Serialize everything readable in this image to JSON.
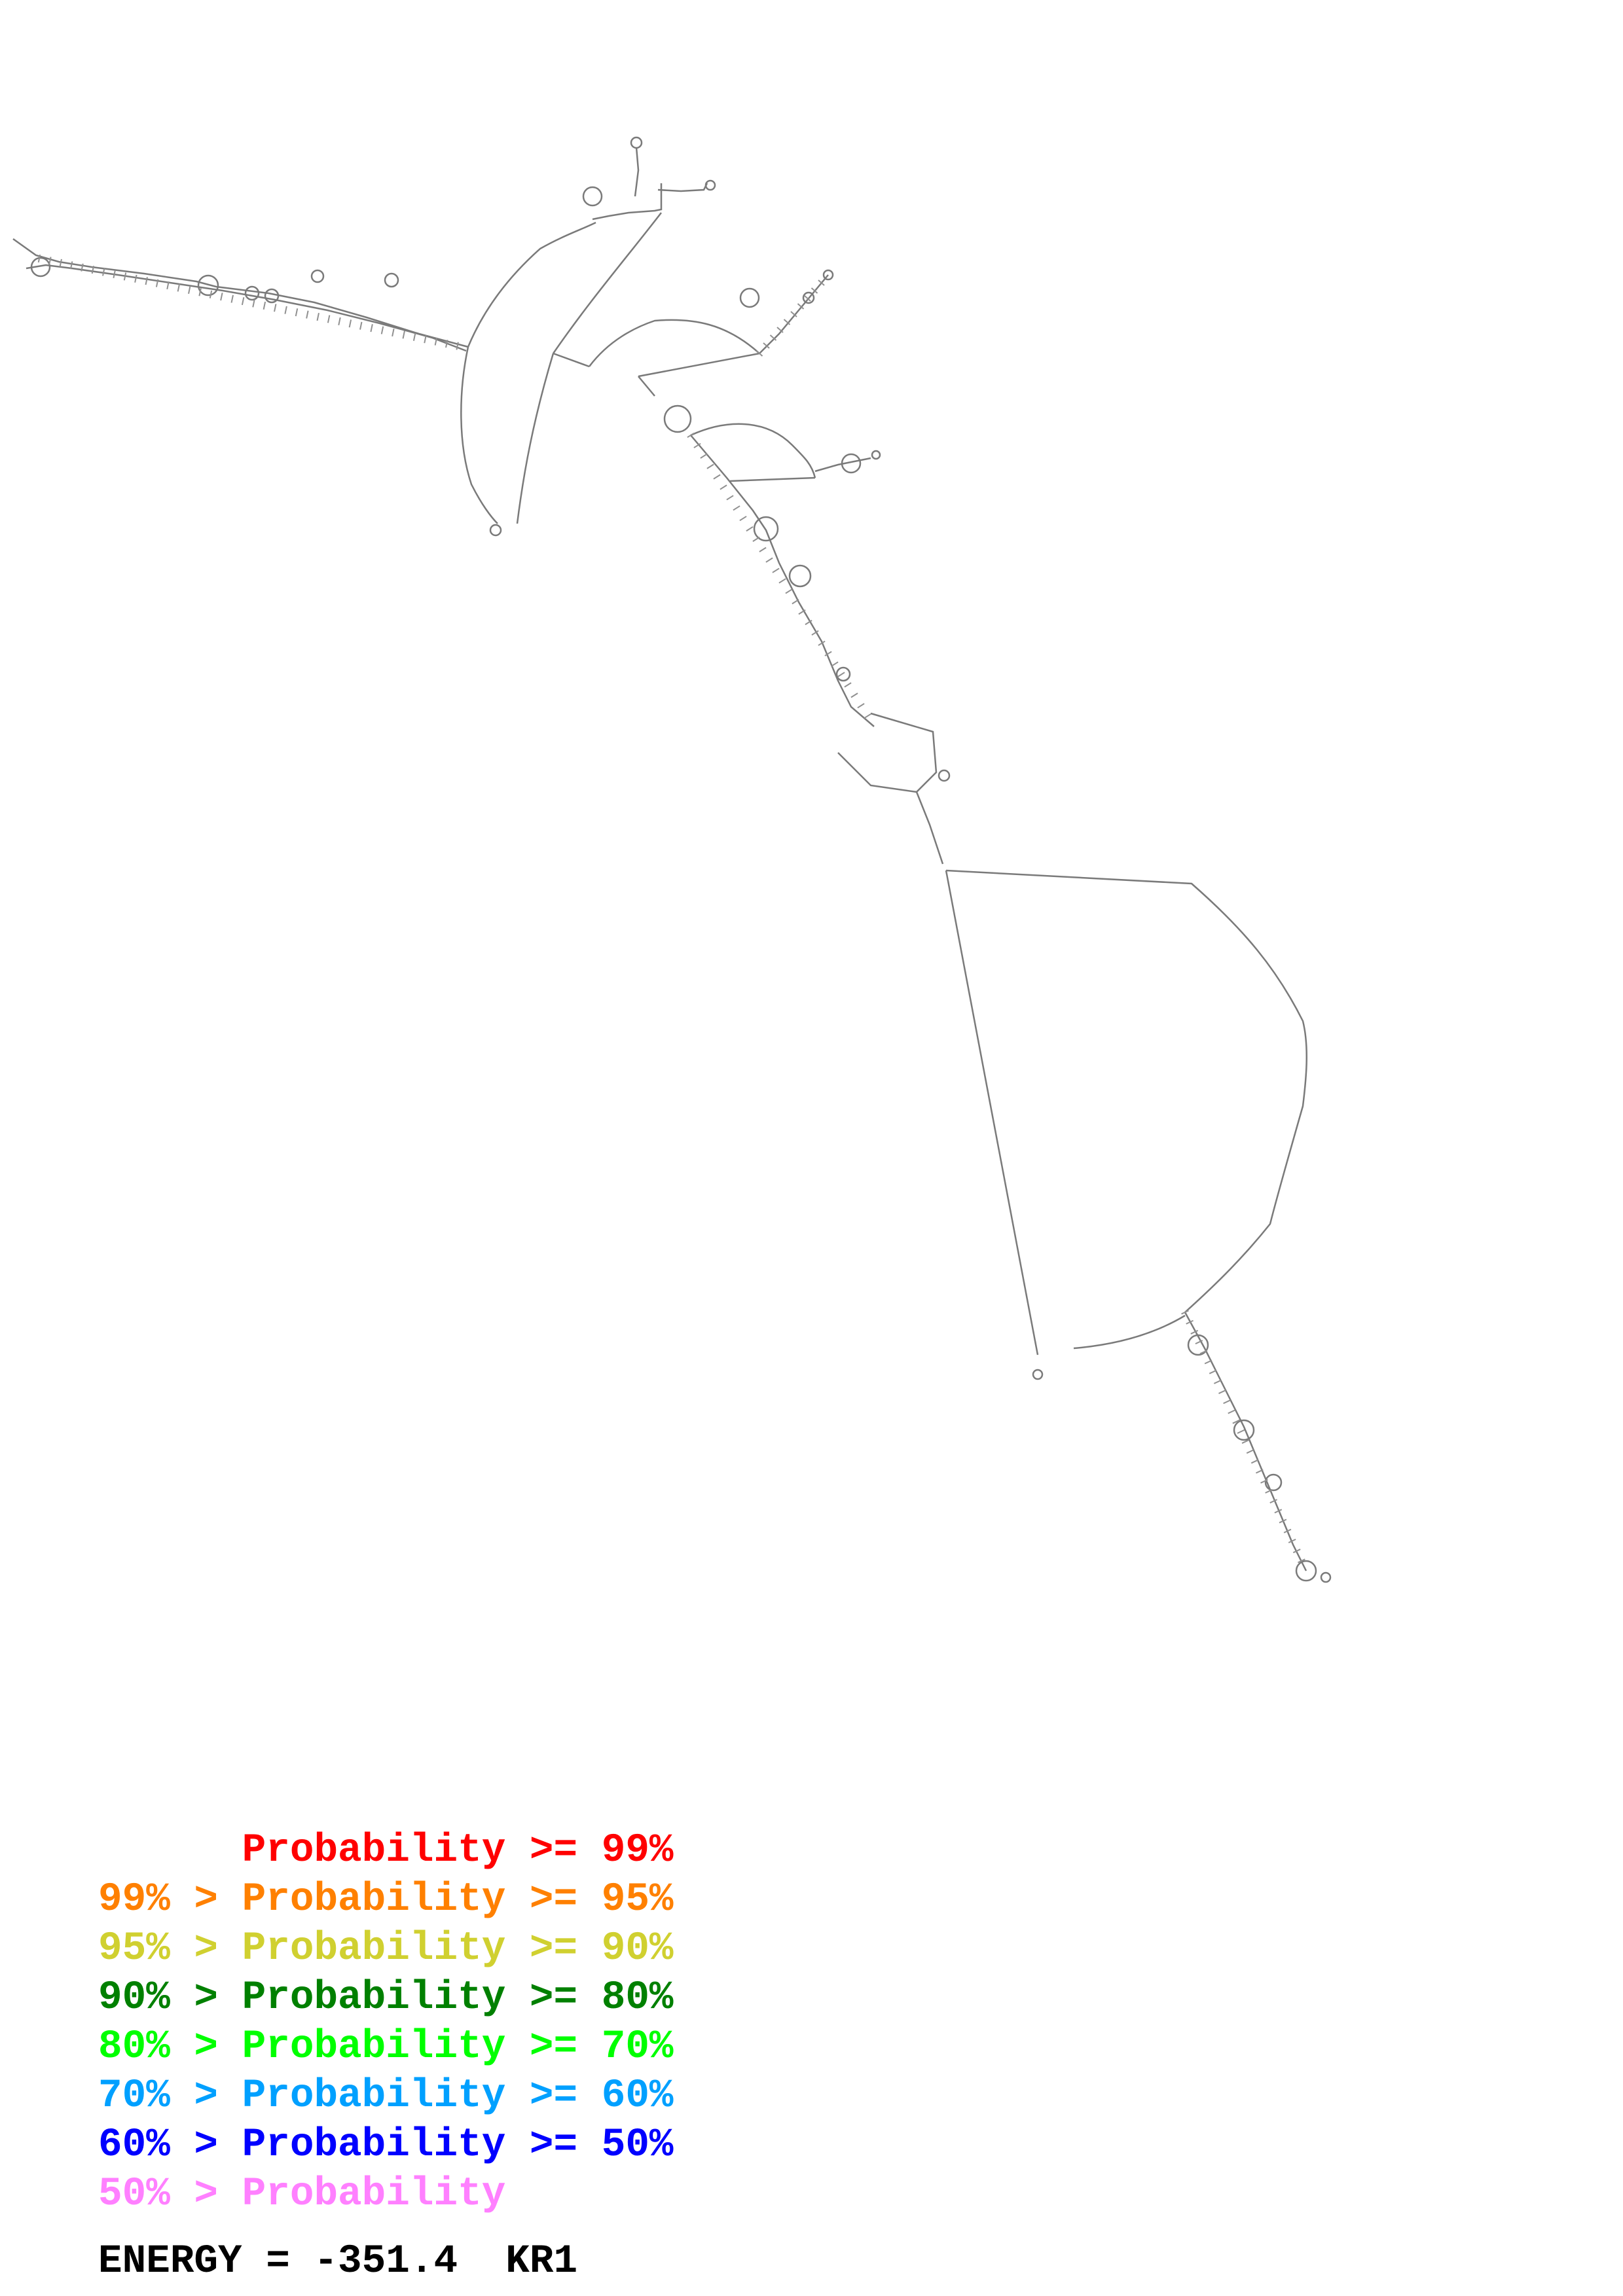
{
  "legend": {
    "items": [
      {
        "text": "      Probability >= 99%",
        "color": "#ff0000"
      },
      {
        "text": "99% > Probability >= 95%",
        "color": "#ff8000"
      },
      {
        "text": "95% > Probability >= 90%",
        "color": "#d0d030"
      },
      {
        "text": "90% > Probability >= 80%",
        "color": "#008000"
      },
      {
        "text": "80% > Probability >= 70%",
        "color": "#00ff00"
      },
      {
        "text": "70% > Probability >= 60%",
        "color": "#00a0ff"
      },
      {
        "text": "60% > Probability >= 50%",
        "color": "#0000ff"
      },
      {
        "text": "50% > Probability",
        "color": "#ff80ff"
      }
    ]
  },
  "energy": {
    "label": "ENERGY = -351.4  KR1"
  },
  "colors": {
    "backbone": "#7a7a7a",
    "pair_default": "#909090"
  }
}
